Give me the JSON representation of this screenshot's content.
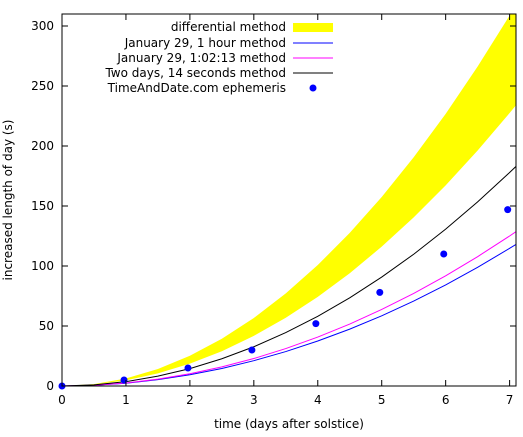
{
  "chart_data": {
    "type": "line",
    "xlabel": "time (days after solstice)",
    "ylabel": "increased length of day (s)",
    "xlim": [
      0,
      7.1
    ],
    "ylim": [
      0,
      310
    ],
    "xticks": [
      0,
      1,
      2,
      3,
      4,
      5,
      6,
      7
    ],
    "yticks": [
      0,
      50,
      100,
      150,
      200,
      250,
      300
    ],
    "grid": false,
    "legend_position": "top-left",
    "band": {
      "name": "differential method",
      "color": "#ffff00",
      "x": [
        0,
        0.5,
        1,
        1.5,
        2,
        2.5,
        3,
        3.5,
        4,
        4.5,
        5,
        5.5,
        6,
        6.5,
        7,
        7.1
      ],
      "lower": [
        0,
        1.2,
        4.7,
        10.5,
        18.6,
        29.0,
        41.8,
        56.9,
        74.3,
        94.0,
        116.1,
        140.5,
        167.2,
        196.2,
        227.5,
        234.0
      ],
      "upper": [
        0,
        1.6,
        6.3,
        14.2,
        25.2,
        39.4,
        56.7,
        77.2,
        100.8,
        127.6,
        157.5,
        190.6,
        226.8,
        266.2,
        308.7,
        317.6
      ]
    },
    "series": [
      {
        "name": "January 29, 1 hour method",
        "color": "#0000ff",
        "x": [
          0,
          0.5,
          1,
          1.5,
          2,
          2.5,
          3,
          3.5,
          4,
          4.5,
          5,
          5.5,
          6,
          6.5,
          7,
          7.1
        ],
        "y": [
          0,
          0.6,
          2.3,
          5.3,
          9.4,
          14.6,
          21.1,
          28.7,
          37.5,
          47.4,
          58.5,
          70.8,
          84.2,
          98.9,
          114.7,
          118.0
        ]
      },
      {
        "name": "January 29, 1:02:13 method",
        "color": "#ff00ff",
        "x": [
          0,
          0.5,
          1,
          1.5,
          2,
          2.5,
          3,
          3.5,
          4,
          4.5,
          5,
          5.5,
          6,
          6.5,
          7,
          7.1
        ],
        "y": [
          0,
          0.6,
          2.5,
          5.7,
          10.2,
          15.9,
          22.9,
          31.2,
          40.8,
          51.6,
          63.8,
          77.1,
          91.8,
          107.8,
          125.0,
          128.6
        ]
      },
      {
        "name": "Two days, 14 seconds method",
        "color": "#000000",
        "x": [
          0,
          0.5,
          1,
          1.5,
          2,
          2.5,
          3,
          3.5,
          4,
          4.5,
          5,
          5.5,
          6,
          6.5,
          7,
          7.1
        ],
        "y": [
          0,
          0.9,
          3.6,
          8.2,
          14.5,
          22.7,
          32.7,
          44.5,
          58.1,
          73.5,
          90.8,
          109.8,
          130.7,
          153.4,
          177.9,
          183.0
        ]
      }
    ],
    "points": {
      "name": "TimeAndDate.com ephemeris",
      "color": "#0000ff",
      "x": [
        0,
        0.97,
        1.97,
        2.97,
        3.97,
        4.97,
        5.97,
        6.97
      ],
      "y": [
        0,
        5,
        15,
        30,
        52,
        78,
        110,
        147
      ]
    }
  }
}
